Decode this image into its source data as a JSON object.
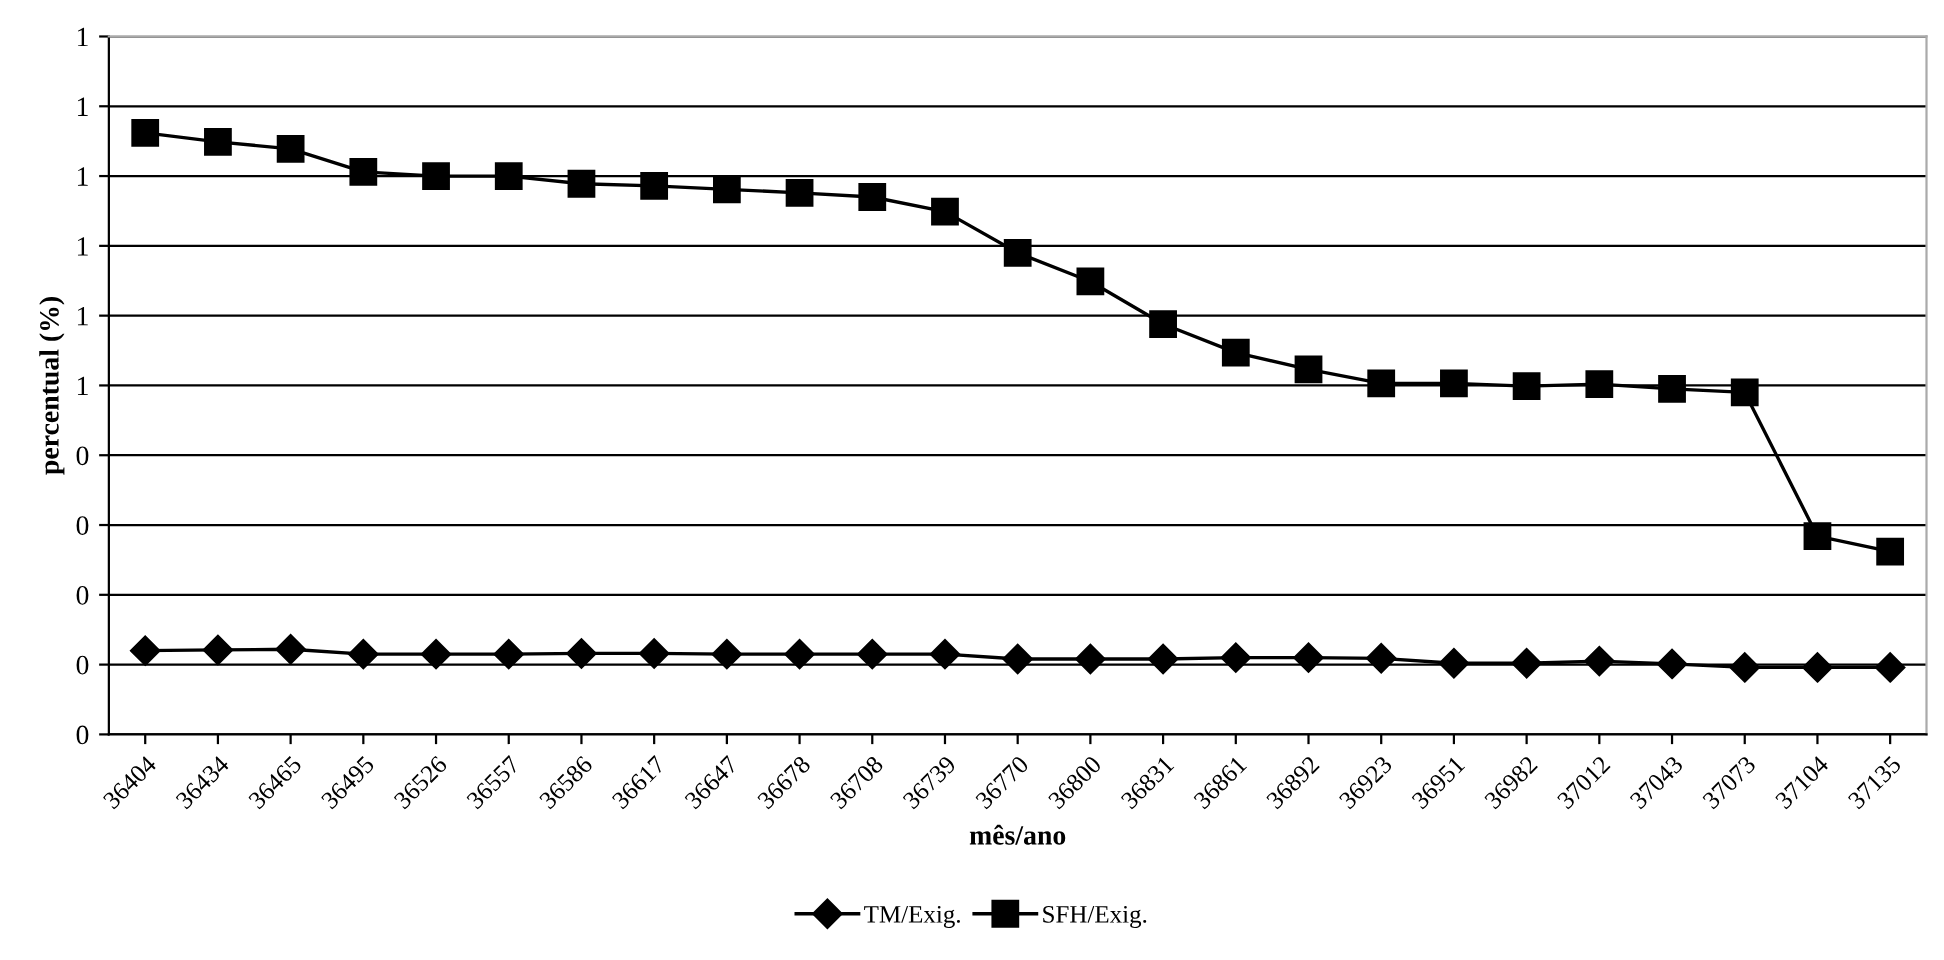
{
  "chart_data": {
    "type": "line",
    "xlabel": "mês/ano",
    "ylabel": "percentual (%)",
    "categories": [
      "36404",
      "36434",
      "36465",
      "36495",
      "36526",
      "36557",
      "36586",
      "36617",
      "36647",
      "36678",
      "36708",
      "36739",
      "36770",
      "36800",
      "36831",
      "36861",
      "36892",
      "36923",
      "36951",
      "36982",
      "37012",
      "37043",
      "37073",
      "37104",
      "37135"
    ],
    "series": [
      {
        "name": "TM/Exig.",
        "color": "#000000",
        "marker": "diamond",
        "values": [
          0.12,
          0.121,
          0.122,
          0.115,
          0.115,
          0.115,
          0.116,
          0.116,
          0.115,
          0.115,
          0.115,
          0.115,
          0.108,
          0.108,
          0.108,
          0.11,
          0.11,
          0.109,
          0.102,
          0.102,
          0.105,
          0.101,
          0.096,
          0.096,
          0.096
        ]
      },
      {
        "name": "SFH/Exig.",
        "color": "#000000",
        "marker": "square",
        "values": [
          0.862,
          0.849,
          0.839,
          0.806,
          0.8,
          0.8,
          0.789,
          0.786,
          0.781,
          0.776,
          0.77,
          0.749,
          0.69,
          0.649,
          0.588,
          0.547,
          0.523,
          0.503,
          0.503,
          0.499,
          0.502,
          0.495,
          0.49,
          0.284,
          0.262
        ]
      }
    ],
    "ylim": [
      0,
      1
    ],
    "yticks": [
      {
        "value": 0,
        "label": "0"
      },
      {
        "value": 0.1,
        "label": "0"
      },
      {
        "value": 0.2,
        "label": "0"
      },
      {
        "value": 0.3,
        "label": "0"
      },
      {
        "value": 0.4,
        "label": "0"
      },
      {
        "value": 0.5,
        "label": "1"
      },
      {
        "value": 0.6,
        "label": "1"
      },
      {
        "value": 0.7,
        "label": "1"
      },
      {
        "value": 0.8,
        "label": "1"
      },
      {
        "value": 0.9,
        "label": "1"
      },
      {
        "value": 1,
        "label": "1"
      }
    ],
    "grid": "y",
    "legend": "bottom",
    "line_style": "solid"
  }
}
